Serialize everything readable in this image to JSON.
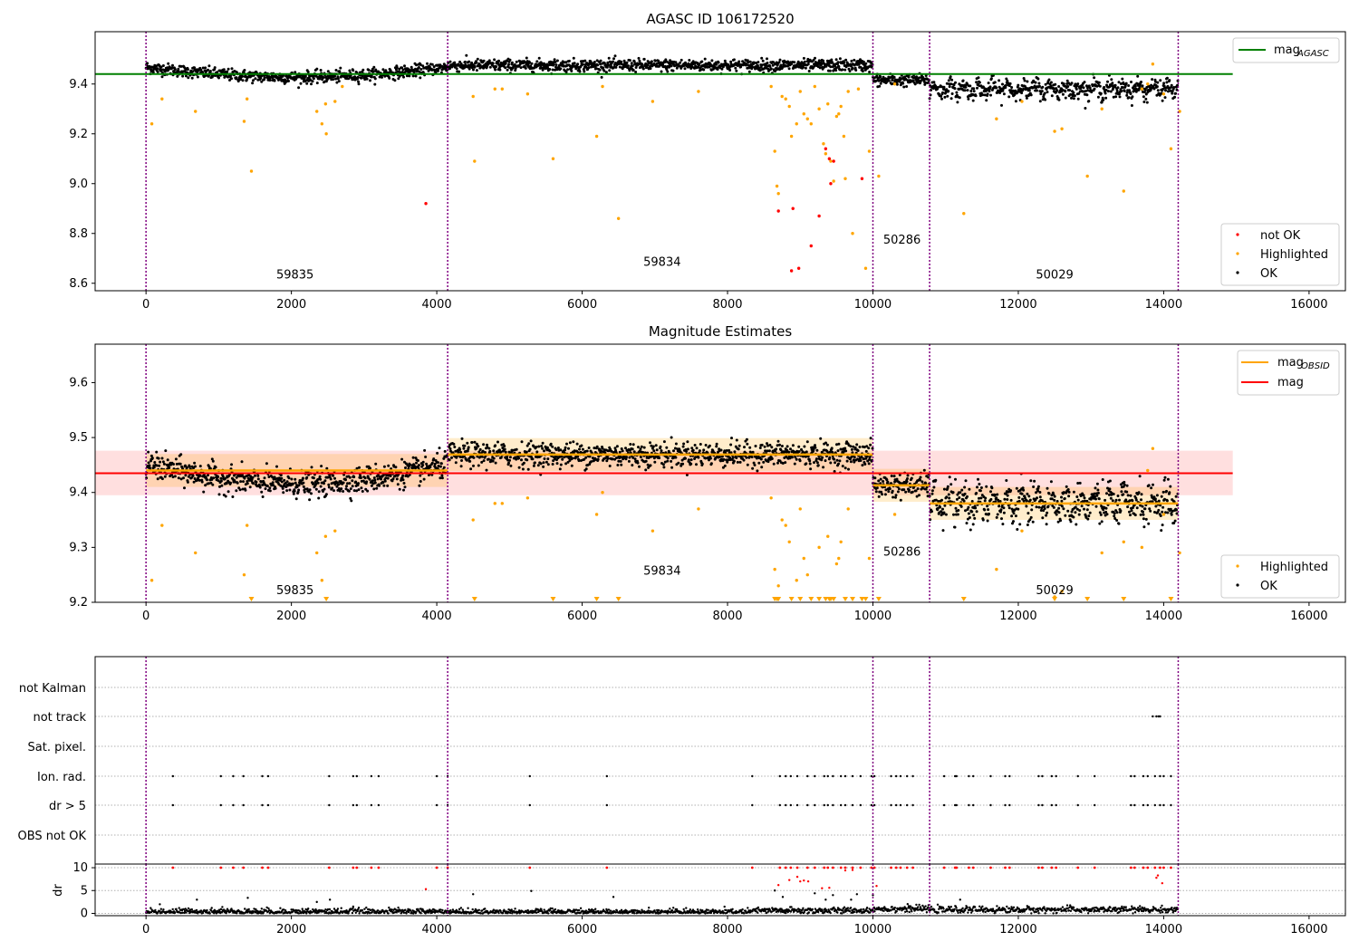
{
  "figure": {
    "colors": {
      "ok": "#000000",
      "highlighted": "#ffa500",
      "not_ok": "#ff0000",
      "agasc_line": "#008000",
      "obsid_line": "#ffa500",
      "mag_line": "#ff0000",
      "band": "#ffc0c0",
      "obs_bound": "#800080"
    }
  },
  "chart_data": [
    {
      "type": "scatter",
      "title": "AGASC ID 106172520",
      "xlim": [
        -700,
        16500
      ],
      "ylim": [
        8.57,
        9.61
      ],
      "xticks": [
        0,
        2000,
        4000,
        6000,
        8000,
        10000,
        12000,
        14000,
        16000
      ],
      "xtick_labels": [
        "0",
        "2000",
        "4000",
        "6000",
        "8000",
        "10000",
        "12000",
        "14000",
        "16000"
      ],
      "yticks": [
        8.6,
        8.8,
        9.0,
        9.2,
        9.4
      ],
      "ytick_labels": [
        "8.6",
        "8.8",
        "9.0",
        "9.2",
        "9.4"
      ],
      "obs_boundaries": [
        0,
        4150,
        10000,
        10780,
        14200
      ],
      "obs_labels": [
        {
          "text": "59835",
          "x": 2050,
          "y": 8.62
        },
        {
          "text": "59834",
          "x": 7100,
          "y": 8.67
        },
        {
          "text": "50286",
          "x": 10400,
          "y": 8.76
        },
        {
          "text": "50029",
          "x": 12500,
          "y": 8.62
        }
      ],
      "hlines": [
        {
          "name": "mag_AGASC",
          "y": 9.44,
          "x": [
            -700,
            14950
          ],
          "color": "#008000"
        }
      ],
      "ok_segments": [
        {
          "x0": 0,
          "x1": 4150,
          "mean": 9.455,
          "amp": 0.04,
          "period": 4100,
          "phase": 0.0,
          "scatter": 0.012
        },
        {
          "x0": 4150,
          "x1": 10000,
          "mean": 9.475,
          "amp": 0.0,
          "period": 1,
          "phase": 0,
          "scatter": 0.012
        },
        {
          "x0": 10000,
          "x1": 10780,
          "mean": 9.415,
          "amp": 0.0,
          "period": 1,
          "phase": 0,
          "scatter": 0.012
        },
        {
          "x0": 10780,
          "x1": 14200,
          "mean": 9.38,
          "amp": 0.015,
          "period": 200,
          "phase": 0,
          "scatter": 0.018
        }
      ],
      "highlighted": [
        [
          80,
          9.24
        ],
        [
          220,
          9.34
        ],
        [
          680,
          9.29
        ],
        [
          1350,
          9.25
        ],
        [
          1390,
          9.34
        ],
        [
          1450,
          9.05
        ],
        [
          2350,
          9.29
        ],
        [
          2420,
          9.24
        ],
        [
          2470,
          9.32
        ],
        [
          2480,
          9.2
        ],
        [
          2600,
          9.33
        ],
        [
          2700,
          9.39
        ],
        [
          4500,
          9.35
        ],
        [
          4520,
          9.09
        ],
        [
          4800,
          9.38
        ],
        [
          4900,
          9.38
        ],
        [
          5250,
          9.36
        ],
        [
          5600,
          9.1
        ],
        [
          6200,
          9.19
        ],
        [
          6280,
          9.39
        ],
        [
          6500,
          8.86
        ],
        [
          6970,
          9.33
        ],
        [
          7600,
          9.37
        ],
        [
          8600,
          9.39
        ],
        [
          8650,
          9.13
        ],
        [
          8680,
          8.99
        ],
        [
          8700,
          8.96
        ],
        [
          8750,
          9.35
        ],
        [
          8800,
          9.34
        ],
        [
          8850,
          9.31
        ],
        [
          8880,
          9.19
        ],
        [
          8950,
          9.24
        ],
        [
          9000,
          9.37
        ],
        [
          9050,
          9.28
        ],
        [
          9100,
          9.26
        ],
        [
          9150,
          9.24
        ],
        [
          9200,
          9.39
        ],
        [
          9260,
          9.3
        ],
        [
          9320,
          9.16
        ],
        [
          9350,
          9.12
        ],
        [
          9380,
          9.32
        ],
        [
          9420,
          9.09
        ],
        [
          9460,
          9.01
        ],
        [
          9500,
          9.27
        ],
        [
          9530,
          9.28
        ],
        [
          9560,
          9.31
        ],
        [
          9600,
          9.19
        ],
        [
          9620,
          9.02
        ],
        [
          9660,
          9.37
        ],
        [
          9720,
          8.8
        ],
        [
          9800,
          9.38
        ],
        [
          9900,
          8.66
        ],
        [
          9950,
          9.13
        ],
        [
          10080,
          9.03
        ],
        [
          10300,
          9.4
        ],
        [
          11250,
          8.88
        ],
        [
          11700,
          9.26
        ],
        [
          12050,
          9.33
        ],
        [
          12600,
          9.22
        ],
        [
          12500,
          9.21
        ],
        [
          12950,
          9.03
        ],
        [
          13150,
          9.3
        ],
        [
          13450,
          8.97
        ],
        [
          13700,
          9.38
        ],
        [
          13780,
          9.4
        ],
        [
          13850,
          9.48
        ],
        [
          14000,
          9.36
        ],
        [
          14100,
          9.14
        ],
        [
          14220,
          9.29
        ]
      ],
      "not_ok": [
        [
          3850,
          8.92
        ],
        [
          8700,
          8.89
        ],
        [
          8900,
          8.9
        ],
        [
          8980,
          8.66
        ],
        [
          8880,
          8.65
        ],
        [
          9150,
          8.75
        ],
        [
          9260,
          8.87
        ],
        [
          9350,
          9.14
        ],
        [
          9400,
          9.1
        ],
        [
          9460,
          9.09
        ],
        [
          9420,
          9.0
        ],
        [
          9850,
          9.02
        ]
      ],
      "legend": [
        "not OK",
        "Highlighted",
        "OK"
      ],
      "legend_line": "mag",
      "legend_line_sub": "AGASC"
    },
    {
      "type": "scatter",
      "title": "Magnitude Estimates",
      "xlim": [
        -700,
        16500
      ],
      "ylim": [
        9.2,
        9.67
      ],
      "xticks": [
        0,
        2000,
        4000,
        6000,
        8000,
        10000,
        12000,
        14000,
        16000
      ],
      "xtick_labels": [
        "0",
        "2000",
        "4000",
        "6000",
        "8000",
        "10000",
        "12000",
        "14000",
        "16000"
      ],
      "yticks": [
        9.2,
        9.3,
        9.4,
        9.5,
        9.6
      ],
      "ytick_labels": [
        "9.2",
        "9.3",
        "9.4",
        "9.5",
        "9.6"
      ],
      "obs_boundaries": [
        0,
        4150,
        10000,
        10780,
        14200
      ],
      "obs_labels": [
        {
          "text": "59835",
          "x": 2050,
          "y": 9.215
        },
        {
          "text": "59834",
          "x": 7100,
          "y": 9.25
        },
        {
          "text": "50286",
          "x": 10400,
          "y": 9.285
        },
        {
          "text": "50029",
          "x": 12500,
          "y": 9.215
        }
      ],
      "band": {
        "x": [
          -700,
          14950
        ],
        "y0": 9.395,
        "y1": 9.476
      },
      "mag_line": {
        "y": 9.435,
        "x": [
          -700,
          14950
        ]
      },
      "obsid_means": [
        {
          "x0": 0,
          "x1": 4150,
          "y": 9.44
        },
        {
          "x0": 4150,
          "x1": 10000,
          "y": 9.469
        },
        {
          "x0": 10000,
          "x1": 10780,
          "y": 9.413
        },
        {
          "x0": 10780,
          "x1": 14200,
          "y": 9.38
        }
      ],
      "ok_segments": [
        {
          "x0": 0,
          "x1": 4150,
          "mean": 9.44,
          "amp": 0.035,
          "period": 4100,
          "phase": 0.0,
          "scatter": 0.012
        },
        {
          "x0": 4150,
          "x1": 10000,
          "mean": 9.469,
          "amp": 0.0,
          "period": 1,
          "phase": 0,
          "scatter": 0.011
        },
        {
          "x0": 10000,
          "x1": 10780,
          "mean": 9.413,
          "amp": 0.0,
          "period": 1,
          "phase": 0,
          "scatter": 0.011
        },
        {
          "x0": 10780,
          "x1": 14200,
          "mean": 9.38,
          "amp": 0.015,
          "period": 200,
          "phase": 0,
          "scatter": 0.016
        }
      ],
      "highlighted": [
        [
          80,
          9.24
        ],
        [
          220,
          9.34
        ],
        [
          680,
          9.29
        ],
        [
          1350,
          9.25
        ],
        [
          1390,
          9.34
        ],
        [
          2350,
          9.29
        ],
        [
          2420,
          9.24
        ],
        [
          2470,
          9.32
        ],
        [
          2600,
          9.33
        ],
        [
          4500,
          9.35
        ],
        [
          4800,
          9.38
        ],
        [
          4900,
          9.38
        ],
        [
          5250,
          9.39
        ],
        [
          6200,
          9.36
        ],
        [
          6280,
          9.4
        ],
        [
          6970,
          9.33
        ],
        [
          7600,
          9.37
        ],
        [
          8600,
          9.39
        ],
        [
          8650,
          9.26
        ],
        [
          8700,
          9.23
        ],
        [
          8750,
          9.35
        ],
        [
          8800,
          9.34
        ],
        [
          8850,
          9.31
        ],
        [
          8950,
          9.24
        ],
        [
          9000,
          9.37
        ],
        [
          9050,
          9.28
        ],
        [
          9100,
          9.25
        ],
        [
          9260,
          9.3
        ],
        [
          9380,
          9.32
        ],
        [
          9500,
          9.27
        ],
        [
          9530,
          9.28
        ],
        [
          9560,
          9.31
        ],
        [
          9660,
          9.37
        ],
        [
          9950,
          9.28
        ],
        [
          10300,
          9.36
        ],
        [
          11700,
          9.26
        ],
        [
          12050,
          9.33
        ],
        [
          12600,
          9.22
        ],
        [
          12500,
          9.21
        ],
        [
          13150,
          9.29
        ],
        [
          13450,
          9.31
        ],
        [
          13700,
          9.3
        ],
        [
          13780,
          9.44
        ],
        [
          13850,
          9.48
        ],
        [
          14000,
          9.36
        ],
        [
          14220,
          9.29
        ]
      ],
      "triangles_x": [
        1450,
        2480,
        4520,
        5600,
        6200,
        6500,
        8650,
        8680,
        8700,
        8880,
        9000,
        9150,
        9260,
        9350,
        9400,
        9420,
        9460,
        9620,
        9720,
        9850,
        9900,
        10080,
        11250,
        12500,
        12950,
        13450,
        14100
      ],
      "legend": [
        "Highlighted",
        "OK"
      ],
      "legend_lines": [
        {
          "text": "mag",
          "sub": "OBSID"
        },
        {
          "text": "mag"
        }
      ]
    },
    {
      "type": "scatter",
      "title": "",
      "xlim": [
        -700,
        16500
      ],
      "categories": [
        "not Kalman",
        "not track",
        "Sat. pixel.",
        "Ion. rad.",
        "dr > 5",
        "OBS not OK"
      ],
      "xticks": [
        0,
        2000,
        4000,
        6000,
        8000,
        10000,
        12000,
        14000,
        16000
      ],
      "xtick_labels": [
        "0",
        "2000",
        "4000",
        "6000",
        "8000",
        "10000",
        "12000",
        "14000",
        "16000"
      ],
      "obs_boundaries": [
        0,
        4150,
        10000,
        10780,
        14200
      ],
      "flag_x": [
        370,
        1030,
        1200,
        1340,
        1600,
        1680,
        2520,
        2850,
        2900,
        3100,
        3200,
        4000,
        4150,
        5280,
        6340,
        8340,
        8720,
        8800,
        8870,
        8960,
        9100,
        9200,
        9330,
        9380,
        9450,
        9560,
        9620,
        9720,
        9830,
        9980,
        10020,
        10250,
        10320,
        10380,
        10470,
        10550,
        10980,
        11130,
        11150,
        11320,
        11380,
        11620,
        11820,
        11880,
        12280,
        12330,
        12460,
        12520,
        12820,
        13050,
        13550,
        13600,
        13720,
        13780,
        13880,
        13950,
        14000,
        14100
      ],
      "not_track_x": [
        13850,
        13900,
        13930,
        13950
      ],
      "dr_ylabel": "dr",
      "dr_ylim": [
        -0.5,
        10.8
      ],
      "dr_yticks": [
        0,
        5,
        10
      ],
      "dr_ytick_labels": [
        "0",
        "5",
        "10"
      ],
      "dr_outliers": [
        [
          190,
          2.0
        ],
        [
          700,
          3.0
        ],
        [
          1050,
          1.4
        ],
        [
          1400,
          3.4
        ],
        [
          2350,
          2.5
        ],
        [
          2530,
          3.0
        ],
        [
          2850,
          1.5
        ],
        [
          3850,
          5.3
        ],
        [
          4500,
          4.2
        ],
        [
          5300,
          4.9
        ],
        [
          6430,
          3.6
        ],
        [
          8650,
          5.0
        ],
        [
          8700,
          6.2
        ],
        [
          8760,
          3.6
        ],
        [
          8850,
          7.3
        ],
        [
          8960,
          8.0
        ],
        [
          9000,
          7.0
        ],
        [
          9050,
          7.2
        ],
        [
          9110,
          7.0
        ],
        [
          9200,
          4.4
        ],
        [
          9300,
          5.5
        ],
        [
          9350,
          3.0
        ],
        [
          9400,
          5.6
        ],
        [
          9450,
          4.0
        ],
        [
          9520,
          1.2
        ],
        [
          9620,
          9.4
        ],
        [
          9700,
          3.0
        ],
        [
          9720,
          9.5
        ],
        [
          9780,
          4.2
        ],
        [
          10000,
          4.0
        ],
        [
          10050,
          6.0
        ],
        [
          11200,
          3.0
        ],
        [
          13900,
          7.8
        ],
        [
          13920,
          8.3
        ],
        [
          13980,
          6.6
        ]
      ]
    }
  ]
}
